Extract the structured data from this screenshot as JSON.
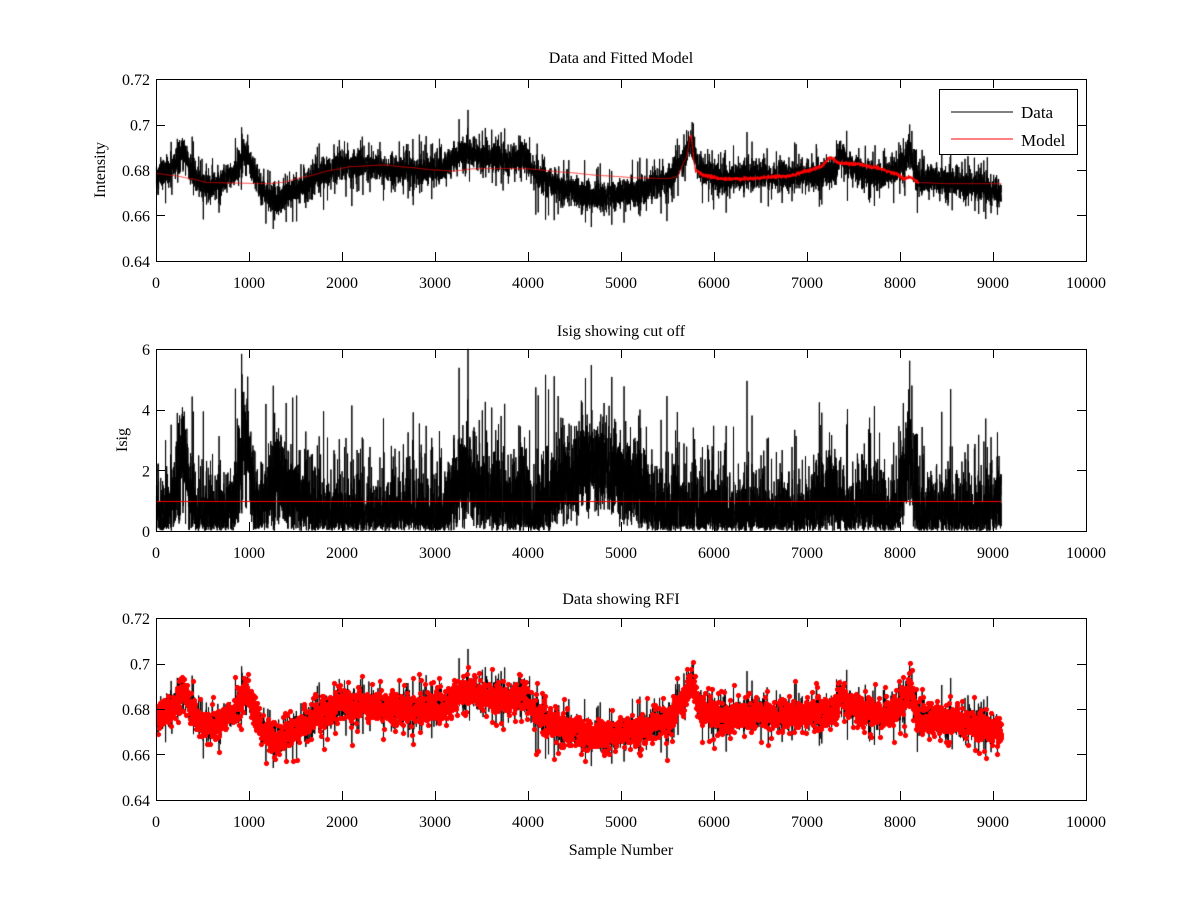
{
  "figure": {
    "background": "#ffffff"
  },
  "colors": {
    "data": "#000000",
    "model": "#ff0000",
    "cutoff": "#ff0000",
    "rfi_marker": "#ff0000",
    "axes": "#000000"
  },
  "chart_data": [
    {
      "type": "line",
      "title": "Data and Fitted Model",
      "xlabel": "",
      "ylabel": "Intensity",
      "xlim": [
        0,
        10000
      ],
      "ylim": [
        0.64,
        0.72
      ],
      "xticks": [
        0,
        1000,
        2000,
        3000,
        4000,
        5000,
        6000,
        7000,
        8000,
        9000,
        10000
      ],
      "xtick_labels": [
        "0",
        "1000",
        "2000",
        "3000",
        "4000",
        "5000",
        "6000",
        "7000",
        "8000",
        "9000",
        "10000"
      ],
      "yticks": [
        0.64,
        0.66,
        0.68,
        0.7,
        0.72
      ],
      "ytick_labels": [
        "0.64",
        "0.66",
        "0.68",
        "0.7",
        "0.72"
      ],
      "legend": {
        "position": "top-right",
        "entries": [
          "Data",
          "Model"
        ]
      },
      "n_samples": 9090,
      "series": [
        {
          "name": "Data",
          "color": "#000000",
          "baseline": [
            [
              0,
              0.677
            ],
            [
              150,
              0.68
            ],
            [
              300,
              0.688
            ],
            [
              400,
              0.678
            ],
            [
              500,
              0.673
            ],
            [
              700,
              0.674
            ],
            [
              850,
              0.679
            ],
            [
              950,
              0.688
            ],
            [
              1050,
              0.68
            ],
            [
              1150,
              0.67
            ],
            [
              1300,
              0.667
            ],
            [
              1500,
              0.671
            ],
            [
              1800,
              0.678
            ],
            [
              2000,
              0.682
            ],
            [
              2200,
              0.683
            ],
            [
              2500,
              0.68
            ],
            [
              2800,
              0.679
            ],
            [
              3100,
              0.681
            ],
            [
              3300,
              0.688
            ],
            [
              3500,
              0.686
            ],
            [
              3800,
              0.684
            ],
            [
              3950,
              0.686
            ],
            [
              4100,
              0.677
            ],
            [
              4400,
              0.672
            ],
            [
              4700,
              0.668
            ],
            [
              5000,
              0.669
            ],
            [
              5300,
              0.672
            ],
            [
              5500,
              0.676
            ],
            [
              5650,
              0.684
            ],
            [
              5750,
              0.692
            ],
            [
              5850,
              0.679
            ],
            [
              6100,
              0.676
            ],
            [
              6400,
              0.678
            ],
            [
              6700,
              0.677
            ],
            [
              7000,
              0.677
            ],
            [
              7300,
              0.679
            ],
            [
              7350,
              0.687
            ],
            [
              7450,
              0.682
            ],
            [
              7600,
              0.678
            ],
            [
              7900,
              0.678
            ],
            [
              8050,
              0.683
            ],
            [
              8100,
              0.69
            ],
            [
              8180,
              0.676
            ],
            [
              8500,
              0.675
            ],
            [
              8800,
              0.673
            ],
            [
              9090,
              0.67
            ]
          ],
          "noise_sigma": 0.0042
        },
        {
          "name": "Model",
          "color": "#ff0000",
          "values": [
            [
              0,
              0.6785
            ],
            [
              200,
              0.6775
            ],
            [
              400,
              0.676
            ],
            [
              550,
              0.6745
            ],
            [
              800,
              0.6743
            ],
            [
              1200,
              0.674
            ],
            [
              1350,
              0.6745
            ],
            [
              1600,
              0.677
            ],
            [
              1900,
              0.68
            ],
            [
              2100,
              0.6815
            ],
            [
              2450,
              0.6822
            ],
            [
              2700,
              0.6812
            ],
            [
              3000,
              0.68
            ],
            [
              3200,
              0.6795
            ],
            [
              3400,
              0.6805
            ],
            [
              3700,
              0.6807
            ],
            [
              4000,
              0.6805
            ],
            [
              4400,
              0.679
            ],
            [
              4800,
              0.6775
            ],
            [
              5200,
              0.6765
            ],
            [
              5500,
              0.6762
            ],
            [
              5600,
              0.677
            ],
            [
              5700,
              0.685
            ],
            [
              5750,
              0.6955
            ],
            [
              5800,
              0.68
            ],
            [
              5900,
              0.6775
            ],
            [
              6100,
              0.676
            ],
            [
              6400,
              0.6762
            ],
            [
              6600,
              0.677
            ],
            [
              6800,
              0.6772
            ],
            [
              7000,
              0.6795
            ],
            [
              7150,
              0.6815
            ],
            [
              7250,
              0.6855
            ],
            [
              7350,
              0.683
            ],
            [
              7550,
              0.6825
            ],
            [
              7750,
              0.681
            ],
            [
              7950,
              0.6785
            ],
            [
              8050,
              0.676
            ],
            [
              8100,
              0.677
            ],
            [
              8200,
              0.6745
            ],
            [
              8500,
              0.674
            ],
            [
              9090,
              0.674
            ]
          ]
        }
      ]
    },
    {
      "type": "line",
      "title": "Isig showing cut off",
      "xlabel": "",
      "ylabel": "Isig",
      "xlim": [
        0,
        10000
      ],
      "ylim": [
        0,
        6
      ],
      "xticks": [
        0,
        1000,
        2000,
        3000,
        4000,
        5000,
        6000,
        7000,
        8000,
        9000,
        10000
      ],
      "xtick_labels": [
        "0",
        "1000",
        "2000",
        "3000",
        "4000",
        "5000",
        "6000",
        "7000",
        "8000",
        "9000",
        "10000"
      ],
      "yticks": [
        0,
        2,
        4,
        6
      ],
      "ytick_labels": [
        "0",
        "2",
        "4",
        "6"
      ],
      "series": [
        {
          "name": "Isig",
          "color": "#000000",
          "derived_from": "abs(Data - Model) / 0.0042"
        },
        {
          "name": "Cut off",
          "color": "#ff0000",
          "value": 1.0
        }
      ]
    },
    {
      "type": "scatter",
      "title": "Data showing RFI",
      "xlabel": "Sample Number",
      "ylabel": "",
      "xlim": [
        0,
        10000
      ],
      "ylim": [
        0.64,
        0.72
      ],
      "xticks": [
        0,
        1000,
        2000,
        3000,
        4000,
        5000,
        6000,
        7000,
        8000,
        9000,
        10000
      ],
      "xtick_labels": [
        "0",
        "1000",
        "2000",
        "3000",
        "4000",
        "5000",
        "6000",
        "7000",
        "8000",
        "9000",
        "10000"
      ],
      "yticks": [
        0.64,
        0.66,
        0.68,
        0.7,
        0.72
      ],
      "ytick_labels": [
        "0.64",
        "0.66",
        "0.68",
        "0.7",
        "0.72"
      ],
      "series": [
        {
          "name": "Data",
          "color": "#000000",
          "style": "line"
        },
        {
          "name": "RFI",
          "color": "#ff0000",
          "style": "marker",
          "marker": "plus-diamond"
        }
      ]
    }
  ]
}
